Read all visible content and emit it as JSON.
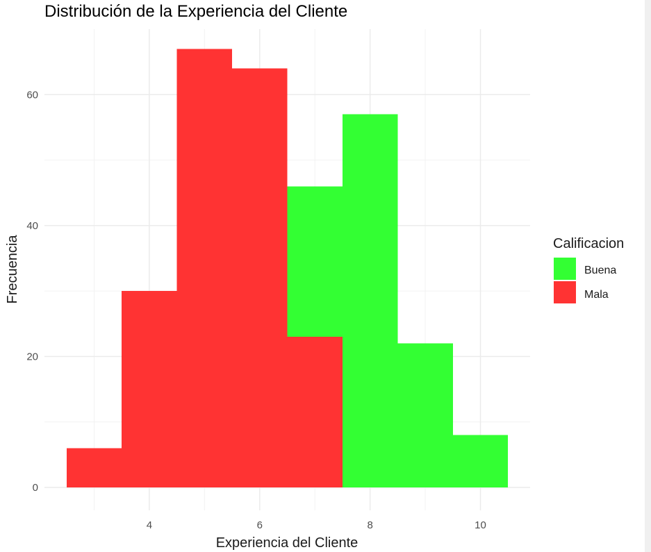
{
  "chart_data": {
    "type": "bar",
    "subtype": "stacked-histogram",
    "title": "Distribución de la Experiencia del Cliente",
    "xlabel": "Experiencia del Cliente",
    "ylabel": "Frecuencia",
    "xlim": [
      2.1,
      10.9
    ],
    "ylim": [
      -3.5,
      70
    ],
    "x_ticks": [
      4,
      6,
      8,
      10
    ],
    "y_ticks": [
      0,
      20,
      40,
      60
    ],
    "grid": true,
    "legend": {
      "title": "Calificacion",
      "position": "right",
      "entries": [
        {
          "label": "Buena",
          "color": "#33ff33"
        },
        {
          "label": "Mala",
          "color": "#ff3333"
        }
      ]
    },
    "bin_width": 1,
    "bin_centers": [
      3,
      4,
      5,
      6,
      7,
      8,
      9,
      10
    ],
    "series": [
      {
        "name": "Mala",
        "color": "#ff3333",
        "values": [
          6,
          30,
          67,
          64,
          23,
          0,
          0,
          0
        ]
      },
      {
        "name": "Buena",
        "color": "#33ff33",
        "values": [
          0,
          0,
          0,
          0,
          23,
          57,
          22,
          8
        ]
      }
    ]
  }
}
